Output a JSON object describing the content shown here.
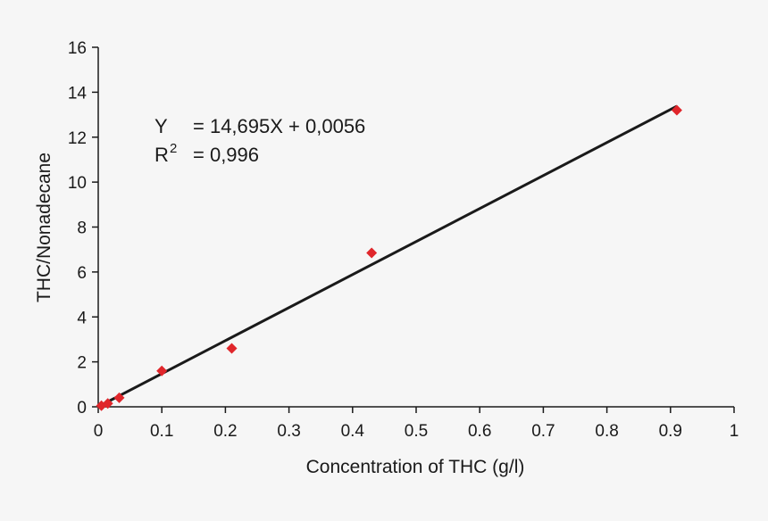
{
  "chart_data": {
    "type": "scatter",
    "title": "",
    "xlabel": "Concentration of THC (g/l)",
    "ylabel": "THC/Nonadecane",
    "xlim": [
      0,
      1
    ],
    "ylim": [
      0,
      16
    ],
    "x_ticks": [
      0,
      0.1,
      0.2,
      0.3,
      0.4,
      0.5,
      0.6,
      0.7,
      0.8,
      0.9,
      1
    ],
    "x_tick_labels": [
      "0",
      "0.1",
      "0.2",
      "0.3",
      "0.4",
      "0.5",
      "0.6",
      "0.7",
      "0.8",
      "0.9",
      "1"
    ],
    "y_ticks": [
      0,
      2,
      4,
      6,
      8,
      10,
      12,
      14,
      16
    ],
    "y_tick_labels": [
      "0",
      "2",
      "4",
      "6",
      "8",
      "10",
      "12",
      "14",
      "16"
    ],
    "grid": false,
    "legend": "none",
    "series": [
      {
        "marker": "diamond",
        "color": "#e0262b",
        "points": [
          {
            "x": 0.005,
            "y": 0.05
          },
          {
            "x": 0.015,
            "y": 0.15
          },
          {
            "x": 0.033,
            "y": 0.4
          },
          {
            "x": 0.1,
            "y": 1.6
          },
          {
            "x": 0.21,
            "y": 2.6
          },
          {
            "x": 0.43,
            "y": 6.85
          },
          {
            "x": 0.91,
            "y": 13.2
          }
        ]
      }
    ],
    "trendline": {
      "color": "#1a1a1a",
      "slope": 14.695,
      "intercept": 0.0056,
      "x_range": [
        0.01,
        0.91
      ]
    },
    "annotations": {
      "eq_y": "Y",
      "eq_rhs": "= 14,695X + 0,0056",
      "r_base": "R",
      "r_sup": "2",
      "r_rhs": "= 0,996"
    }
  }
}
